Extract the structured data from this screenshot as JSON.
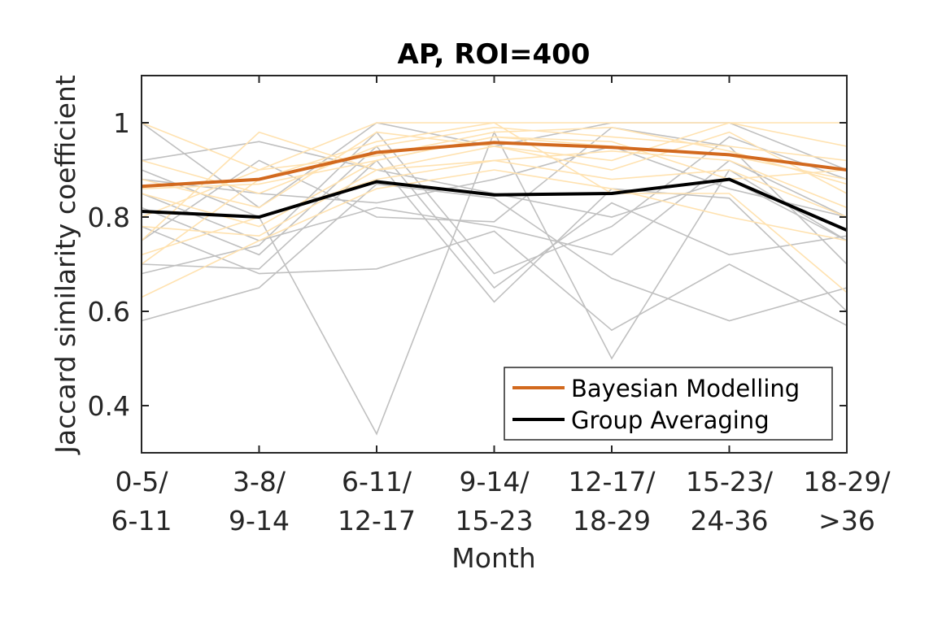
{
  "chart_data": {
    "type": "line",
    "title": "AP, ROI=400",
    "xlabel": "Month",
    "ylabel": "Jaccard similarity coefficient",
    "categories": [
      [
        "0-5/",
        "6-11"
      ],
      [
        "3-8/",
        "9-14"
      ],
      [
        "6-11/",
        "12-17"
      ],
      [
        "9-14/",
        "15-23"
      ],
      [
        "12-17/",
        "18-29"
      ],
      [
        "15-23/",
        "24-36"
      ],
      [
        "18-29/",
        ">36"
      ]
    ],
    "ylim": [
      0.3,
      1.1
    ],
    "yticks": [
      0.4,
      0.6,
      0.8,
      1
    ],
    "ytick_labels": [
      "0.4",
      "0.6",
      "0.8",
      "1"
    ],
    "grid": false,
    "legend_position": "bottom-right",
    "colors": {
      "bayesian_mean": "#D2691E",
      "bayesian_individual": "#FFE2B0",
      "group_mean": "#000000",
      "group_individual": "#C0C0C0"
    },
    "series": [
      {
        "name": "Bayesian Modelling",
        "values": [
          0.865,
          0.88,
          0.937,
          0.958,
          0.948,
          0.932,
          0.9
        ]
      },
      {
        "name": "Group Averaging",
        "values": [
          0.812,
          0.8,
          0.875,
          0.847,
          0.85,
          0.88,
          0.772
        ]
      }
    ],
    "individual_bayesian": [
      [
        1.0,
        0.9,
        1.0,
        1.0,
        1.0,
        1.0,
        1.0
      ],
      [
        0.92,
        0.85,
        0.95,
        0.99,
        0.97,
        0.95,
        0.92
      ],
      [
        0.85,
        0.78,
        0.92,
        0.97,
        0.95,
        0.93,
        0.88
      ],
      [
        0.78,
        0.76,
        0.9,
        0.95,
        0.9,
        0.98,
        0.85
      ],
      [
        0.72,
        0.8,
        0.88,
        0.92,
        0.88,
        0.9,
        0.8
      ],
      [
        0.63,
        0.75,
        0.86,
        0.9,
        0.86,
        0.8,
        0.75
      ],
      [
        0.7,
        0.88,
        0.96,
        1.0,
        0.85,
        0.85,
        0.64
      ],
      [
        0.88,
        0.82,
        0.98,
        0.95,
        0.92,
        1.0,
        0.95
      ],
      [
        0.8,
        0.9,
        0.93,
        0.98,
        0.99,
        0.94,
        0.87
      ],
      [
        0.75,
        0.98,
        0.9,
        0.92,
        0.94,
        0.92,
        0.82
      ],
      [
        0.86,
        0.87,
        0.92,
        0.97,
        0.96,
        0.88,
        0.9
      ]
    ],
    "individual_group": [
      [
        1.0,
        0.82,
        1.0,
        0.95,
        1.0,
        1.0,
        0.9
      ],
      [
        0.92,
        0.96,
        0.9,
        0.85,
        0.8,
        0.88,
        0.75
      ],
      [
        0.85,
        0.75,
        0.82,
        0.78,
        0.72,
        0.92,
        0.8
      ],
      [
        0.78,
        0.68,
        0.69,
        0.77,
        0.56,
        0.7,
        0.57
      ],
      [
        0.7,
        0.69,
        0.92,
        0.62,
        0.86,
        0.84,
        0.6
      ],
      [
        0.58,
        0.65,
        0.87,
        0.84,
        0.67,
        0.58,
        0.65
      ],
      [
        0.9,
        0.8,
        0.34,
        0.98,
        0.5,
        0.9,
        0.75
      ],
      [
        0.82,
        0.72,
        0.95,
        0.65,
        0.83,
        0.72,
        0.76
      ],
      [
        0.75,
        0.92,
        0.8,
        0.79,
        0.99,
        0.95,
        0.7
      ],
      [
        0.68,
        0.74,
        0.98,
        0.68,
        0.78,
        0.97,
        0.88
      ],
      [
        0.88,
        0.85,
        0.83,
        0.88,
        0.95,
        0.86,
        0.8
      ]
    ]
  }
}
